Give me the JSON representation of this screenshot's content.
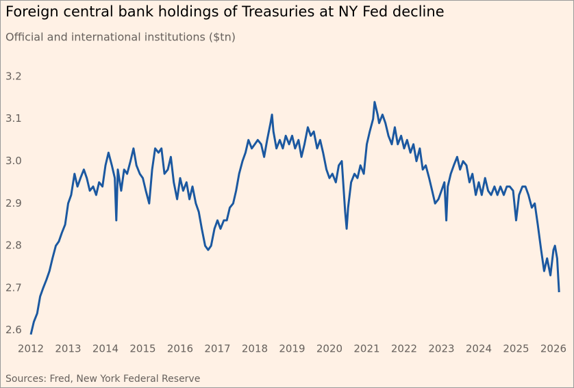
{
  "chart_data": {
    "type": "line",
    "title": "Foreign central bank holdings of Treasuries at NY Fed decline",
    "subtitle": "Official and international institutions ($tn)",
    "source": "Sources: Fred, New York Federal Reserve",
    "color": "#1b58a0",
    "x": [
      2012.0,
      2012.08,
      2012.17,
      2012.25,
      2012.33,
      2012.42,
      2012.5,
      2012.58,
      2012.67,
      2012.75,
      2012.83,
      2012.92,
      2013.0,
      2013.08,
      2013.17,
      2013.25,
      2013.33,
      2013.42,
      2013.5,
      2013.58,
      2013.67,
      2013.75,
      2013.83,
      2013.92,
      2014.0,
      2014.08,
      2014.17,
      2014.25,
      2014.29,
      2014.33,
      2014.42,
      2014.5,
      2014.58,
      2014.67,
      2014.75,
      2014.83,
      2014.92,
      2015.0,
      2015.08,
      2015.17,
      2015.25,
      2015.33,
      2015.42,
      2015.5,
      2015.58,
      2015.67,
      2015.75,
      2015.83,
      2015.92,
      2016.0,
      2016.08,
      2016.17,
      2016.25,
      2016.33,
      2016.42,
      2016.5,
      2016.58,
      2016.67,
      2016.75,
      2016.83,
      2016.92,
      2017.0,
      2017.08,
      2017.17,
      2017.25,
      2017.33,
      2017.42,
      2017.5,
      2017.58,
      2017.67,
      2017.75,
      2017.83,
      2017.92,
      2018.0,
      2018.08,
      2018.17,
      2018.25,
      2018.33,
      2018.42,
      2018.46,
      2018.5,
      2018.58,
      2018.67,
      2018.75,
      2018.83,
      2018.92,
      2019.0,
      2019.08,
      2019.17,
      2019.25,
      2019.33,
      2019.42,
      2019.5,
      2019.58,
      2019.67,
      2019.75,
      2019.83,
      2019.92,
      2020.0,
      2020.08,
      2020.17,
      2020.25,
      2020.33,
      2020.42,
      2020.46,
      2020.5,
      2020.58,
      2020.67,
      2020.75,
      2020.83,
      2020.92,
      2021.0,
      2021.08,
      2021.17,
      2021.21,
      2021.29,
      2021.33,
      2021.42,
      2021.5,
      2021.58,
      2021.67,
      2021.75,
      2021.83,
      2021.92,
      2022.0,
      2022.08,
      2022.17,
      2022.25,
      2022.33,
      2022.42,
      2022.5,
      2022.58,
      2022.67,
      2022.75,
      2022.83,
      2022.92,
      2023.0,
      2023.08,
      2023.13,
      2023.17,
      2023.25,
      2023.33,
      2023.42,
      2023.5,
      2023.58,
      2023.67,
      2023.75,
      2023.83,
      2023.92,
      2024.0,
      2024.08,
      2024.17,
      2024.25,
      2024.33,
      2024.42,
      2024.5,
      2024.58,
      2024.67,
      2024.75,
      2024.83,
      2024.92,
      2025.0,
      2025.08,
      2025.17,
      2025.25,
      2025.33,
      2025.42,
      2025.5,
      2025.58,
      2025.67,
      2025.75,
      2025.83,
      2025.92,
      2026.0,
      2026.04,
      2026.1,
      2026.15
    ],
    "values": [
      2.59,
      2.62,
      2.64,
      2.68,
      2.7,
      2.72,
      2.74,
      2.77,
      2.8,
      2.81,
      2.83,
      2.85,
      2.9,
      2.92,
      2.97,
      2.94,
      2.96,
      2.98,
      2.96,
      2.93,
      2.94,
      2.92,
      2.95,
      2.94,
      2.99,
      3.02,
      2.99,
      2.96,
      2.86,
      2.98,
      2.93,
      2.98,
      2.97,
      3.0,
      3.03,
      2.99,
      2.97,
      2.96,
      2.93,
      2.9,
      2.98,
      3.03,
      3.02,
      3.03,
      2.97,
      2.98,
      3.01,
      2.95,
      2.91,
      2.96,
      2.93,
      2.95,
      2.91,
      2.94,
      2.9,
      2.88,
      2.84,
      2.8,
      2.79,
      2.8,
      2.84,
      2.86,
      2.84,
      2.86,
      2.86,
      2.89,
      2.9,
      2.93,
      2.97,
      3.0,
      3.02,
      3.05,
      3.03,
      3.04,
      3.05,
      3.04,
      3.01,
      3.05,
      3.09,
      3.11,
      3.07,
      3.03,
      3.05,
      3.03,
      3.06,
      3.04,
      3.06,
      3.03,
      3.05,
      3.01,
      3.04,
      3.08,
      3.06,
      3.07,
      3.03,
      3.05,
      3.02,
      2.98,
      2.96,
      2.97,
      2.95,
      2.99,
      3.0,
      2.88,
      2.84,
      2.89,
      2.95,
      2.97,
      2.96,
      2.99,
      2.97,
      3.04,
      3.07,
      3.1,
      3.14,
      3.11,
      3.09,
      3.11,
      3.09,
      3.06,
      3.04,
      3.08,
      3.04,
      3.06,
      3.03,
      3.05,
      3.02,
      3.04,
      3.0,
      3.03,
      2.98,
      2.99,
      2.96,
      2.93,
      2.9,
      2.91,
      2.93,
      2.95,
      2.86,
      2.94,
      2.97,
      2.99,
      3.01,
      2.98,
      3.0,
      2.99,
      2.95,
      2.97,
      2.92,
      2.95,
      2.92,
      2.96,
      2.93,
      2.92,
      2.94,
      2.92,
      2.94,
      2.92,
      2.94,
      2.94,
      2.93,
      2.86,
      2.92,
      2.94,
      2.94,
      2.92,
      2.89,
      2.9,
      2.85,
      2.79,
      2.74,
      2.77,
      2.73,
      2.79,
      2.8,
      2.77,
      2.69
    ],
    "xlim": [
      2012,
      2026.25
    ],
    "xticks": [
      2012,
      2013,
      2014,
      2015,
      2016,
      2017,
      2018,
      2019,
      2020,
      2021,
      2022,
      2023,
      2024,
      2025,
      2026
    ],
    "ylim": [
      2.58,
      3.25
    ],
    "yticks": [
      2.6,
      2.7,
      2.8,
      2.9,
      {
        "value": 3,
        "label": "3.0"
      },
      3.1,
      3.2
    ]
  }
}
